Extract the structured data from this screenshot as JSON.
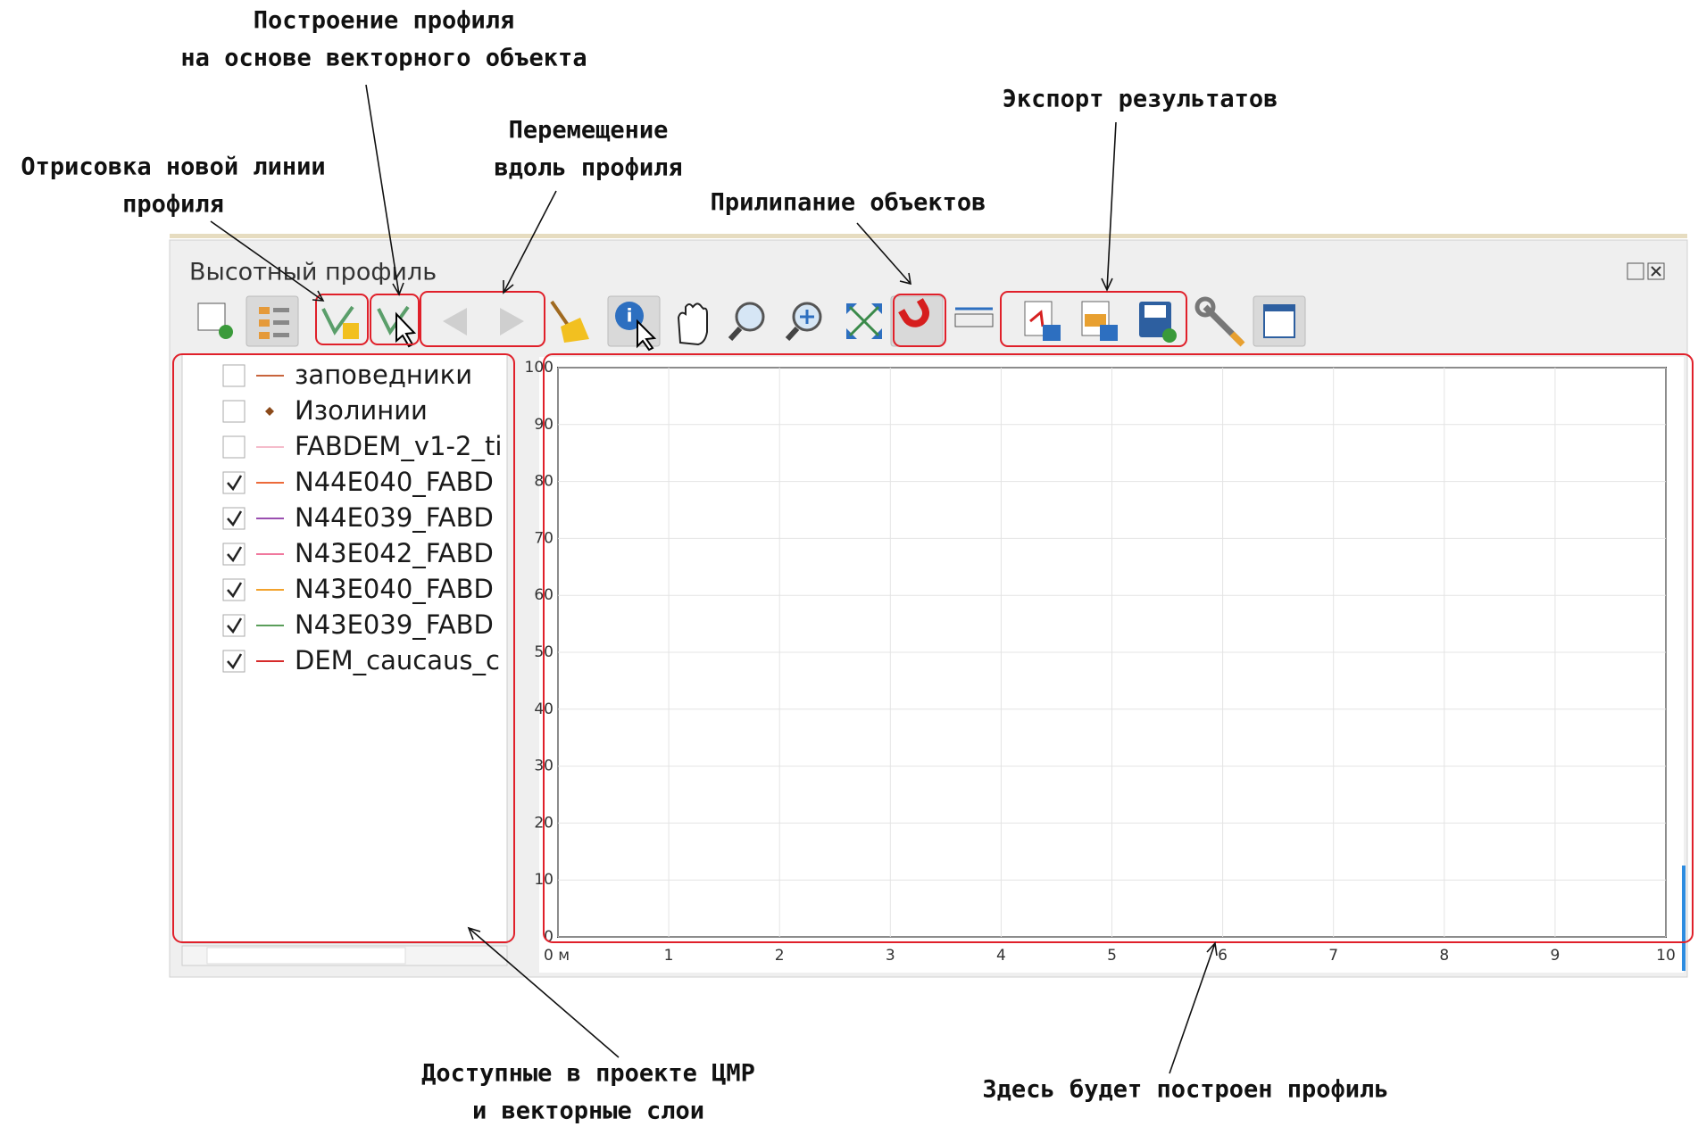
{
  "annotations": {
    "vector_profile": [
      "Построение профиля",
      "на основе векторного объекта"
    ],
    "new_line": [
      "Отрисовка новой линии",
      "профиля"
    ],
    "move_along": [
      "Перемещение",
      "вдоль профиля"
    ],
    "snapping": [
      "Прилипание объектов"
    ],
    "export": [
      "Экспорт результатов"
    ],
    "layers": [
      "Доступные в проекте ЦМР",
      "и векторные слои"
    ],
    "plot": [
      "Здесь будет построен профиль"
    ]
  },
  "panel": {
    "title": "Высотный профиль",
    "layers": [
      {
        "name": "заповедники",
        "checked": false,
        "symbol": "line",
        "color": "#c8643c"
      },
      {
        "name": "Изолинии",
        "checked": false,
        "symbol": "point",
        "color": "#8b4a1a"
      },
      {
        "name": "FABDEM_v1-2_ti",
        "checked": false,
        "symbol": "line",
        "color": "#f5bccb"
      },
      {
        "name": "N44E040_FABD",
        "checked": true,
        "symbol": "line",
        "color": "#ec6a3a"
      },
      {
        "name": "N44E039_FABD",
        "checked": true,
        "symbol": "line",
        "color": "#9a4fb0"
      },
      {
        "name": "N43E042_FABD",
        "checked": true,
        "symbol": "line",
        "color": "#f0789e"
      },
      {
        "name": "N43E040_FABD",
        "checked": true,
        "symbol": "line",
        "color": "#f2a22c"
      },
      {
        "name": "N43E039_FABD",
        "checked": true,
        "symbol": "line",
        "color": "#5a9e5a"
      },
      {
        "name": "DEM_caucaus_c",
        "checked": true,
        "symbol": "line",
        "color": "#d62a2a"
      }
    ]
  },
  "plot": {
    "xlim": [
      0,
      10
    ],
    "ylim": [
      0,
      100
    ],
    "xticks": [
      {
        "value": 0,
        "label": "0 м"
      },
      1,
      2,
      3,
      4,
      5,
      6,
      7,
      8,
      9,
      10
    ],
    "yticks": [
      0,
      10,
      20,
      30,
      40,
      50,
      60,
      70,
      80,
      90,
      100
    ]
  }
}
